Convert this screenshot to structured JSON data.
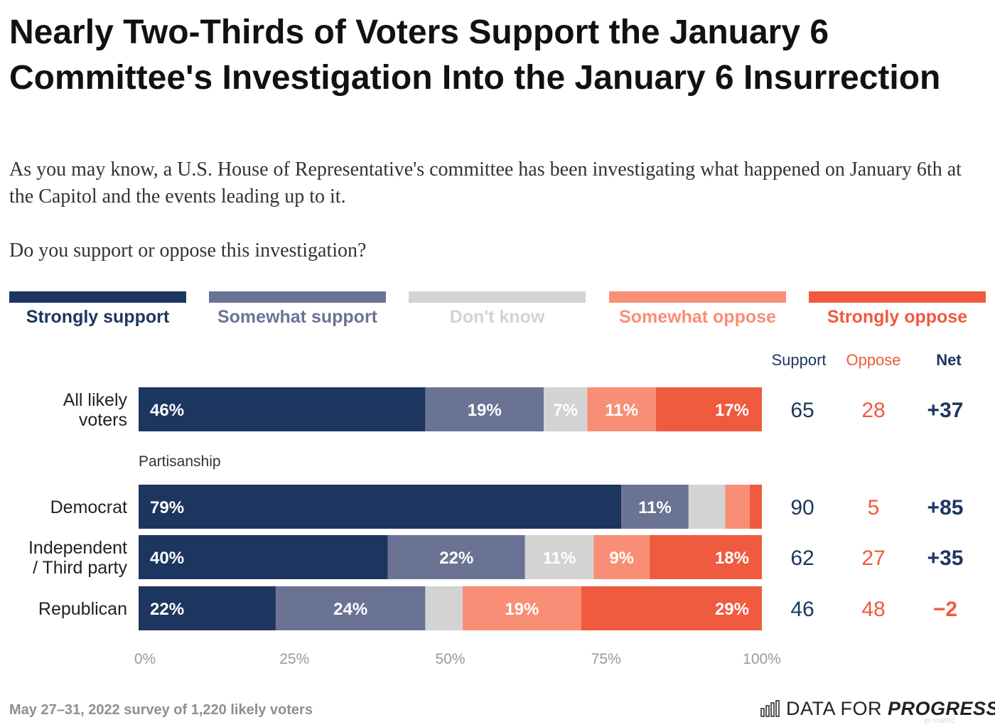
{
  "title": "Nearly Two-Thirds of Voters Support the January 6 Committee's Investigation Into the January 6 Insurrection",
  "subtitle": "As you may know, a U.S. House of Representative's committee has been investigating what happened on January 6th at the Capitol and the events leading up to it.",
  "question": "Do you support or oppose this investigation?",
  "colors": {
    "strongly_support": "#1c365f",
    "somewhat_support": "#6b7394",
    "dont_know": "#d3d3d3",
    "somewhat_oppose": "#f98e76",
    "strongly_oppose": "#f05a3e",
    "support_text": "#1c365f",
    "oppose_text": "#f05a3e"
  },
  "legend": [
    {
      "label": "Strongly support",
      "color": "#1c365f",
      "text_color": "#1c365f"
    },
    {
      "label": "Somewhat support",
      "color": "#6b7394",
      "text_color": "#6b7394"
    },
    {
      "label": "Don't know",
      "color": "#d3d3d3",
      "text_color": "#d3d3d3"
    },
    {
      "label": "Somewhat oppose",
      "color": "#f98e76",
      "text_color": "#f98e76"
    },
    {
      "label": "Strongly oppose",
      "color": "#f05a3e",
      "text_color": "#f05a3e"
    }
  ],
  "columns": {
    "support": "Support",
    "oppose": "Oppose",
    "net": "Net"
  },
  "group_label": "Partisanship",
  "chart_data": {
    "type": "bar",
    "orientation": "horizontal",
    "stacked": true,
    "categories": [
      "All likely voters",
      "Democrat",
      "Independent / Third party",
      "Republican"
    ],
    "series": [
      {
        "name": "Strongly support",
        "values": [
          46,
          79,
          40,
          22
        ],
        "labels": [
          "46%",
          "79%",
          "40%",
          "22%"
        ]
      },
      {
        "name": "Somewhat support",
        "values": [
          19,
          11,
          22,
          24
        ],
        "labels": [
          "19%",
          "11%",
          "22%",
          "24%"
        ]
      },
      {
        "name": "Don't know",
        "values": [
          7,
          6,
          11,
          6
        ],
        "labels": [
          "7%",
          "",
          "11%",
          ""
        ]
      },
      {
        "name": "Somewhat oppose",
        "values": [
          11,
          4,
          9,
          19
        ],
        "labels": [
          "11%",
          "",
          "9%",
          "19%"
        ]
      },
      {
        "name": "Strongly oppose",
        "values": [
          17,
          2,
          18,
          29
        ],
        "labels": [
          "17%",
          "",
          "18%",
          "29%"
        ]
      }
    ],
    "net_table": [
      {
        "support": "65",
        "oppose": "28",
        "net": "+37"
      },
      {
        "support": "90",
        "oppose": "5",
        "net": "+85"
      },
      {
        "support": "62",
        "oppose": "27",
        "net": "+35"
      },
      {
        "support": "46",
        "oppose": "48",
        "net": "−2"
      }
    ],
    "xlim": [
      0,
      100
    ],
    "xticks": [
      "0%",
      "25%",
      "50%",
      "75%",
      "100%"
    ]
  },
  "footer": {
    "note": "May 27–31, 2022 survey of 1,220 likely voters",
    "logo_regular": "DATA FOR ",
    "logo_bold": "PROGRESS",
    "chart_id": "ID: YU6STC"
  }
}
